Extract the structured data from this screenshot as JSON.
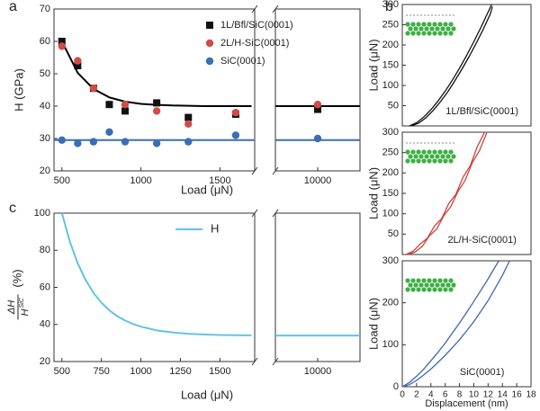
{
  "chart_data": [
    {
      "type": "scatter",
      "panel_label": "a",
      "ylabel": "H (GPa)",
      "xlabel": "Load (μN)",
      "x_segments": [
        [
          450,
          1720
        ],
        [
          9700,
          10300
        ]
      ],
      "xticks": [
        500,
        1000,
        1500,
        10000
      ],
      "ylim": [
        20,
        70
      ],
      "yticks": [
        20,
        30,
        40,
        50,
        60,
        70
      ],
      "legend": "upper right",
      "series": [
        {
          "name": "1L/Bfl/SiC(0001)",
          "color": "#111111",
          "marker": "square",
          "x": [
            500,
            600,
            700,
            800,
            900,
            1100,
            1300,
            1600,
            10000
          ],
          "values": [
            60,
            52.5,
            45.5,
            40.5,
            38.5,
            41,
            36.5,
            37.5,
            39
          ]
        },
        {
          "name": "2L/H-SiC(0001)",
          "color": "#d24b4b",
          "marker": "circle",
          "x": [
            500,
            600,
            700,
            900,
            1100,
            1300,
            1600,
            10000
          ],
          "values": [
            58.5,
            54,
            45.5,
            40.5,
            38.5,
            34.5,
            38,
            40.5
          ]
        },
        {
          "name": "SiC(0001)",
          "color": "#3c6eb4",
          "marker": "circle",
          "x": [
            500,
            600,
            700,
            800,
            900,
            1100,
            1300,
            1600,
            10000
          ],
          "values": [
            29.5,
            28.5,
            29,
            32,
            29,
            28.5,
            29,
            31,
            30
          ]
        }
      ],
      "fits": [
        {
          "color": "#000000",
          "x": [
            500,
            600,
            700,
            800,
            900,
            1000,
            1100,
            1200,
            1300,
            1400,
            1500,
            1600,
            1700,
            null,
            9700,
            10300
          ],
          "values": [
            60,
            50.3,
            45.3,
            42.7,
            41.4,
            40.7,
            40.4,
            40.2,
            40.1,
            40,
            40,
            40,
            40,
            null,
            40,
            40
          ]
        },
        {
          "color": "#3c6eb4",
          "x": [
            450,
            1720,
            null,
            9700,
            10300
          ],
          "values": [
            29.5,
            29.5,
            null,
            29.5,
            29.5
          ]
        }
      ]
    },
    {
      "type": "line",
      "panel_label": "c",
      "xlabel": "Load (μN)",
      "ylabel": {
        "numerator": "ΔH",
        "denominator": "H",
        "denominator_sup": "SiC",
        "unit": "(%)"
      },
      "x_segments": [
        [
          450,
          1720
        ],
        [
          9700,
          10300
        ]
      ],
      "xticks": [
        500,
        750,
        1000,
        1250,
        1500,
        10000
      ],
      "ylim": [
        20,
        100
      ],
      "yticks": [
        20,
        40,
        60,
        80,
        100
      ],
      "legend": "upper right",
      "series": [
        {
          "name": "H",
          "color": "#62c3e3",
          "x": [
            500,
            550,
            600,
            650,
            700,
            750,
            800,
            850,
            900,
            950,
            1000,
            1100,
            1200,
            1300,
            1400,
            1500,
            1700,
            null,
            9700,
            10300
          ],
          "values": [
            100,
            84.7,
            73,
            64,
            57,
            51.7,
            47.6,
            44.5,
            42.1,
            40.2,
            38.8,
            36.8,
            35.7,
            35,
            34.6,
            34.3,
            34.1,
            null,
            34,
            34
          ]
        }
      ]
    },
    {
      "type": "line",
      "panel_label": "b",
      "ylabel": "Load (μN)",
      "annotation": "1L/Bfl/SiC(0001)",
      "xlim": [
        0,
        18
      ],
      "ylim": [
        0,
        300
      ],
      "yticks": [
        50,
        100,
        150,
        200,
        250,
        300
      ],
      "series": [
        {
          "color": "#111111",
          "x": [
            1,
            2,
            3,
            4,
            5,
            6,
            7,
            8,
            9,
            10,
            11,
            12,
            12.5
          ],
          "values": [
            0,
            7.7,
            21.8,
            40,
            61.6,
            86,
            113,
            142.6,
            174.2,
            207.8,
            243.5,
            281,
            300
          ]
        },
        {
          "color": "#111111",
          "x": [
            1.3,
            2.3,
            3.3,
            4.3,
            5.3,
            6.3,
            7.3,
            8.3,
            9.3,
            10.3,
            11.3,
            12.3,
            12.6
          ],
          "values": [
            0,
            7,
            20,
            38,
            59,
            83,
            110,
            139,
            170,
            203,
            238,
            276,
            295
          ]
        }
      ]
    },
    {
      "type": "line",
      "ylabel": "Load (μN)",
      "annotation": "2L/H-SiC(0001)",
      "xlim": [
        0,
        18
      ],
      "ylim": [
        0,
        300
      ],
      "yticks": [
        50,
        100,
        150,
        200,
        250,
        300
      ],
      "series": [
        {
          "color": "#c9453f",
          "x": [
            0.5,
            1.5,
            2.5,
            3.5,
            4.5,
            5.5,
            6.5,
            7.5,
            8.5,
            9.5,
            10.5,
            11.5
          ],
          "values": [
            0,
            8,
            26,
            40,
            70,
            88,
            125,
            148,
            190,
            218,
            265,
            300
          ]
        },
        {
          "color": "#c9453f",
          "x": [
            0.8,
            1.8,
            2.8,
            3.8,
            4.8,
            5.8,
            6.8,
            7.8,
            8.8,
            9.8,
            10.8,
            11.8
          ],
          "values": [
            0,
            6,
            20,
            46,
            62,
            95,
            118,
            155,
            182,
            226,
            255,
            298
          ]
        }
      ]
    },
    {
      "type": "line",
      "ylabel": "Load (μN)",
      "annotation": "SiC(0001)",
      "xlabel": "Displacement (nm)",
      "xlim": [
        0,
        18
      ],
      "xticks": [
        0,
        2,
        4,
        6,
        8,
        10,
        12,
        14,
        16,
        18
      ],
      "ylim": [
        0,
        300
      ],
      "yticks": [
        0,
        100,
        200,
        300
      ],
      "series": [
        {
          "color": "#3f67b0",
          "x": [
            0,
            1,
            2,
            3,
            4,
            5,
            6,
            7,
            8,
            9,
            10,
            11,
            12,
            13,
            13.5
          ],
          "values": [
            0,
            10,
            25,
            42,
            62,
            82,
            104,
            128,
            152,
            177,
            203,
            230,
            257,
            286,
            300
          ]
        },
        {
          "color": "#3f67b0",
          "x": [
            0,
            1,
            2,
            3,
            4,
            5,
            6,
            7,
            8,
            9,
            10,
            11,
            12,
            13,
            14,
            15
          ],
          "values": [
            0,
            5,
            15,
            28,
            42,
            58,
            75,
            93,
            112,
            133,
            155,
            180,
            205,
            235,
            265,
            300
          ]
        }
      ]
    }
  ]
}
